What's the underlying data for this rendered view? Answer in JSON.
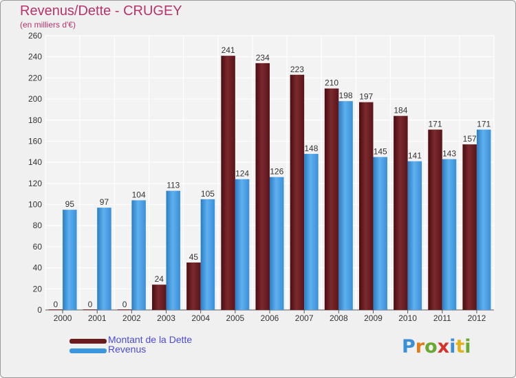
{
  "title": "Revenus/Dette - CRUGEY",
  "subtitle": "(en milliers d'€)",
  "chart_data": {
    "type": "bar",
    "categories": [
      "2000",
      "2001",
      "2002",
      "2003",
      "2004",
      "2005",
      "2006",
      "2007",
      "2008",
      "2009",
      "2010",
      "2011",
      "2012"
    ],
    "series": [
      {
        "name": "Montant de la Dette",
        "color": "#6b1a1e",
        "values": [
          0,
          0,
          0,
          24,
          45,
          241,
          234,
          223,
          210,
          197,
          184,
          171,
          157
        ]
      },
      {
        "name": "Revenus",
        "color": "#3a96dd",
        "values": [
          95,
          97,
          104,
          113,
          105,
          124,
          126,
          148,
          198,
          145,
          141,
          143,
          171
        ]
      }
    ],
    "ylim": [
      0,
      260
    ],
    "yticks": [
      0,
      20,
      40,
      60,
      80,
      100,
      120,
      140,
      160,
      180,
      200,
      220,
      240,
      260
    ],
    "grid": true,
    "legend_position": "bottom-left"
  },
  "logo": {
    "letters": [
      "P",
      "r",
      "o",
      "x",
      "i",
      "t",
      "i"
    ],
    "colors": [
      "#3a8fd6",
      "#e07b1a",
      "#6aa832",
      "#d6322b",
      "#3a8fd6",
      "#e0b21a",
      "#6aa832"
    ]
  }
}
